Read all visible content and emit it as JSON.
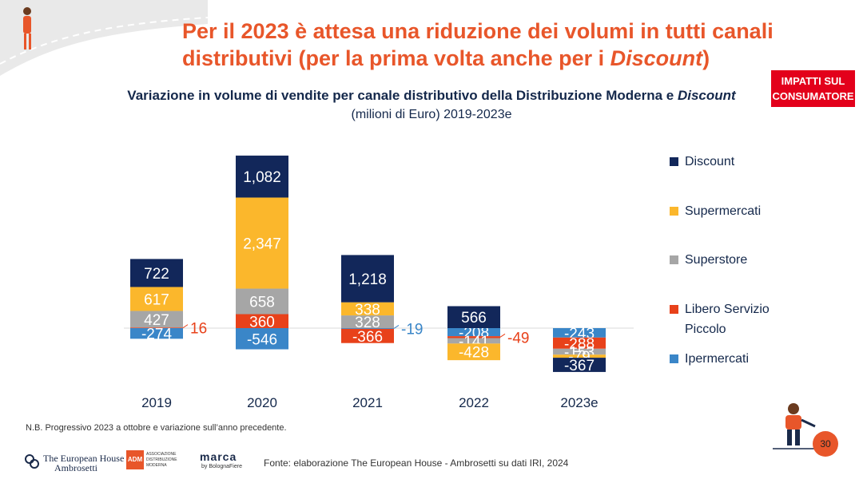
{
  "header": {
    "title_part1": "Per il 2023 è attesa una riduzione dei volumi in tutti canali distributivi (per la prima volta anche per i ",
    "title_italic": "Discount",
    "title_part2": ")",
    "badge": "IMPATTI SUL CONSUMATORE"
  },
  "chart_data": {
    "type": "bar",
    "stacked": true,
    "title": "Variazione in volume di vendite per canale distributivo della Distribuzione Moderna e",
    "title_italic": "Discount",
    "subtitle": "(milioni di Euro) 2019-2023e",
    "categories": [
      "2019",
      "2020",
      "2021",
      "2022",
      "2023e"
    ],
    "series": [
      {
        "name": "Discount",
        "color": "#12275a",
        "values": [
          722,
          1082,
          1218,
          566,
          -367
        ]
      },
      {
        "name": "Supermercati",
        "color": "#fbb72c",
        "values": [
          617,
          2347,
          338,
          -428,
          -79
        ]
      },
      {
        "name": "Superstore",
        "color": "#a6a6a6",
        "values": [
          427,
          658,
          328,
          -141,
          -153
        ]
      },
      {
        "name": "Libero Servizio Piccolo",
        "color": "#e8411a",
        "values": [
          16,
          360,
          -366,
          -49,
          -288
        ]
      },
      {
        "name": "Ipermercati",
        "color": "#3a86c8",
        "values": [
          -274,
          -546,
          -19,
          -208,
          -243
        ]
      }
    ],
    "data_labels": [
      [
        "722",
        "1,082",
        "1,218",
        "566",
        "-367"
      ],
      [
        "617",
        "2,347",
        "338",
        "-428",
        "-79"
      ],
      [
        "427",
        "658",
        "328",
        "-141",
        "-153"
      ],
      [
        "16",
        "360",
        "-366",
        "-49",
        "-288"
      ],
      [
        "-274",
        "-546",
        "-19",
        "-208",
        "-243"
      ]
    ],
    "grid": false,
    "legend": "right"
  },
  "footer": {
    "note": "N.B. Progressivo 2023 a ottobre e variazione sull’anno precedente.",
    "source": "Fonte: elaborazione The European House - Ambrosetti su dati IRI, 2024",
    "page": "30",
    "logo1_line1": "The European House",
    "logo1_line2": "Ambrosetti",
    "logo2": "ADM",
    "logo2_text": "ASSOCIAZIONE DISTRIBUZIONE MODERNA",
    "logo3": "marca",
    "logo3_sub": "by BolognaFiere"
  }
}
